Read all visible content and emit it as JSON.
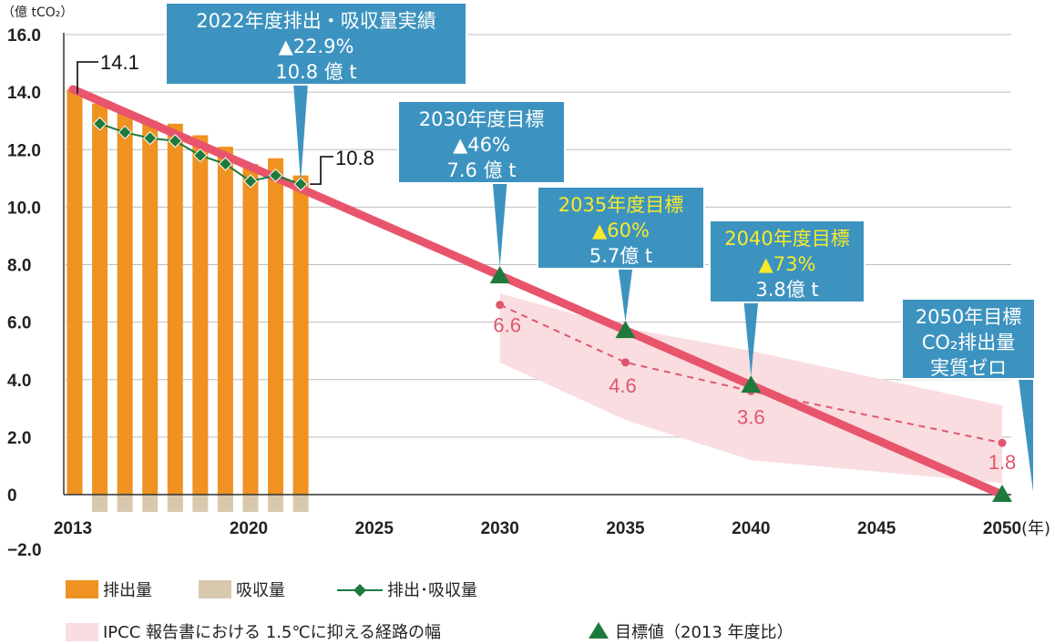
{
  "unit_label": "（億 tCO₂）",
  "year_label": "(年)",
  "neg_tick": "−2.0",
  "y_ticks": [
    "16.0",
    "14.0",
    "12.0",
    "10.0",
    "8.0",
    "6.0",
    "4.0",
    "2.0",
    "0"
  ],
  "x_ticks": [
    "2013",
    "2020",
    "2025",
    "2030",
    "2035",
    "2040",
    "2045",
    "2050"
  ],
  "callouts": [
    {
      "lines": [
        "2022年度排出・吸収量実績",
        "▲22.9%",
        "10.8 億 t"
      ],
      "yellow": [
        false,
        false,
        false
      ]
    },
    {
      "lines": [
        "2030年度目標",
        "▲46%",
        "7.6 億 t"
      ],
      "yellow": [
        false,
        false,
        false
      ]
    },
    {
      "lines": [
        "2035年度目標",
        "▲60%",
        "5.7億 t"
      ],
      "yellow": [
        true,
        true,
        false
      ]
    },
    {
      "lines": [
        "2040年度目標",
        "▲73%",
        "3.8億 t"
      ],
      "yellow": [
        true,
        true,
        false
      ]
    },
    {
      "lines": [
        "2050年目標",
        "CO₂排出量",
        "実質ゼロ"
      ],
      "yellow": [
        false,
        false,
        false
      ]
    }
  ],
  "point_labels": {
    "start": "14.1",
    "end_actual": "10.8"
  },
  "legend": {
    "emissions": "排出量",
    "absorption": "吸収量",
    "net": "排出･吸収量",
    "ipcc": "IPCC 報告書における 1.5℃に抑える経路の幅",
    "target": "目標値（2013 年度比）"
  },
  "colors": {
    "bar": "#ef9222",
    "absorption": "#d8c8ad",
    "net_line": "#1e7a3c",
    "target_line": "#e8546c",
    "ipcc_band": "#f9dde0",
    "ipcc_median": "#e0566e",
    "callout": "#3d93bf",
    "target_marker": "#1e7a3c"
  },
  "chart_data": {
    "type": "bar",
    "ylim": [
      -2.0,
      16.0
    ],
    "xlim": [
      2013,
      2050
    ],
    "emissions": {
      "x": [
        2013,
        2014,
        2015,
        2016,
        2017,
        2018,
        2019,
        2020,
        2021,
        2022
      ],
      "values": [
        14.1,
        13.6,
        13.3,
        13.0,
        12.9,
        12.5,
        12.1,
        11.5,
        11.7,
        11.1
      ]
    },
    "absorption": {
      "x": [
        2014,
        2015,
        2016,
        2017,
        2018,
        2019,
        2020,
        2021,
        2022
      ],
      "values": [
        -0.6,
        -0.6,
        -0.6,
        -0.6,
        -0.6,
        -0.6,
        -0.6,
        -0.6,
        -0.6
      ]
    },
    "net": {
      "x": [
        2014,
        2015,
        2016,
        2017,
        2018,
        2019,
        2020,
        2021,
        2022
      ],
      "values": [
        12.9,
        12.6,
        12.4,
        12.3,
        11.8,
        11.5,
        10.9,
        11.1,
        10.8
      ]
    },
    "target_line": {
      "x": [
        2013,
        2050
      ],
      "values": [
        14.1,
        0
      ]
    },
    "targets": {
      "x": [
        2030,
        2035,
        2040,
        2050
      ],
      "values": [
        7.6,
        5.7,
        3.8,
        0
      ]
    },
    "ipcc_median": {
      "x": [
        2030,
        2035,
        2040,
        2050
      ],
      "values": [
        6.6,
        4.6,
        3.6,
        1.8
      ]
    },
    "ipcc_range": {
      "x": [
        2030,
        2035,
        2040,
        2050
      ],
      "upper": [
        7.0,
        5.8,
        5.0,
        3.1
      ],
      "lower": [
        4.6,
        2.6,
        1.2,
        0.4
      ]
    }
  }
}
